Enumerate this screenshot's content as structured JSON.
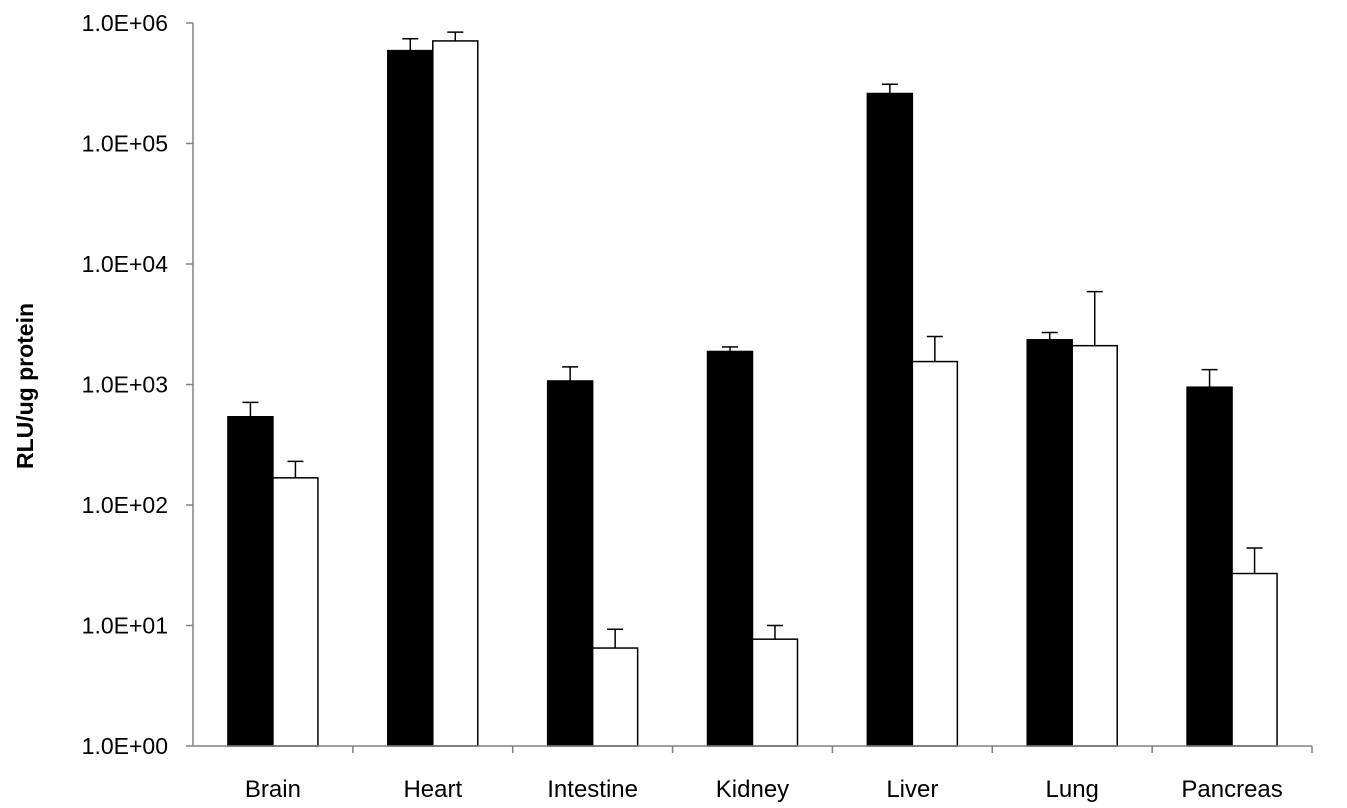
{
  "chart_data": {
    "type": "bar",
    "scale": "log",
    "title": "",
    "xlabel": "",
    "ylabel": "RLU/ug protein",
    "ylim": [
      1,
      1000000
    ],
    "yticks": [
      {
        "value": 1,
        "label": "1.0E+00"
      },
      {
        "value": 10,
        "label": "1.0E+01"
      },
      {
        "value": 100,
        "label": "1.0E+02"
      },
      {
        "value": 1000,
        "label": "1.0E+03"
      },
      {
        "value": 10000,
        "label": "1.0E+04"
      },
      {
        "value": 100000,
        "label": "1.0E+05"
      },
      {
        "value": 1000000,
        "label": "1.0E+06"
      }
    ],
    "grid": false,
    "legend": "none",
    "categories": [
      "Brain",
      "Heart",
      "Intestine",
      "Kidney",
      "Liver",
      "Lung",
      "Pancreas"
    ],
    "series": [
      {
        "color": "#000000",
        "values": [
          540,
          590000,
          1070,
          1880,
          260000,
          2350,
          950
        ],
        "errors_upper": [
          710,
          740000,
          1400,
          2050,
          310000,
          2700,
          1330
        ]
      },
      {
        "color": "#ffffff",
        "values": [
          168,
          710000,
          6.5,
          7.7,
          1550,
          2100,
          27
        ],
        "errors_upper": [
          230,
          840000,
          9.3,
          10,
          2500,
          5900,
          44
        ]
      }
    ]
  }
}
